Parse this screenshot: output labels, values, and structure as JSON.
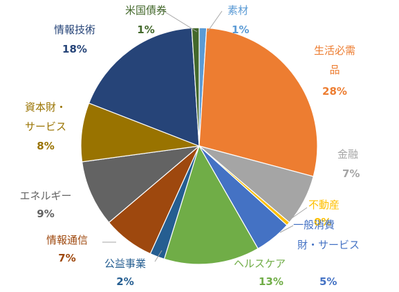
{
  "chart_data": {
    "type": "pie",
    "title": "",
    "slices": [
      {
        "label": "素材",
        "value": 1,
        "pct_text": "1%",
        "color": "#5B9BD5"
      },
      {
        "label": "生活必需品",
        "value": 28,
        "pct_text": "28%",
        "color": "#ED7D31"
      },
      {
        "label": "金融",
        "value": 7,
        "pct_text": "7%",
        "color": "#A5A5A5"
      },
      {
        "label": "不動産",
        "value": 0.5,
        "pct_text": "0%",
        "color": "#FFC000"
      },
      {
        "label": "一般消費財・サービス",
        "value": 5,
        "pct_text": "5%",
        "color": "#4472C4"
      },
      {
        "label": "ヘルスケア",
        "value": 13,
        "pct_text": "13%",
        "color": "#70AD47"
      },
      {
        "label": "公益事業",
        "value": 2,
        "pct_text": "2%",
        "color": "#255E91"
      },
      {
        "label": "情報通信",
        "value": 7,
        "pct_text": "7%",
        "color": "#9E480E"
      },
      {
        "label": "エネルギー",
        "value": 9,
        "pct_text": "9%",
        "color": "#636363"
      },
      {
        "label": "資本財・サービス",
        "value": 8,
        "pct_text": "8%",
        "color": "#997300"
      },
      {
        "label": "情報技術",
        "value": 18,
        "pct_text": "18%",
        "color": "#264478"
      },
      {
        "label": "米国債券",
        "value": 1,
        "pct_text": "1%",
        "color": "#43682B"
      }
    ],
    "start_angle_deg": 0,
    "direction": "clockwise",
    "legend": "none"
  }
}
